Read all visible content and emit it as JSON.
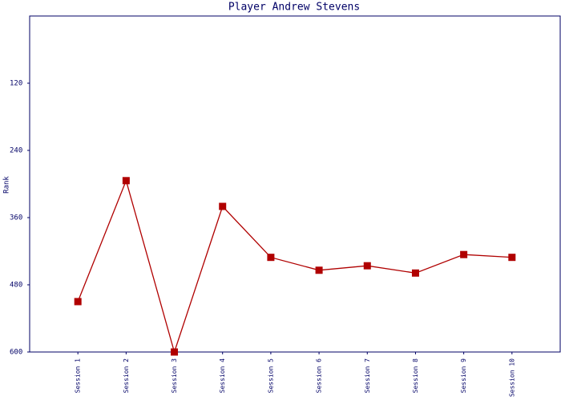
{
  "chart_data": {
    "type": "line",
    "title": "Player Andrew Stevens",
    "y_label": "Rank",
    "categories": [
      "Session 1",
      "Session 2",
      "Session 3",
      "Session 4",
      "Session 5",
      "Session 6",
      "Session 7",
      "Session 8",
      "Session 9",
      "Session 10"
    ],
    "values": [
      510,
      294,
      600,
      340,
      431,
      454,
      446,
      459,
      426,
      431
    ],
    "color": "#b00000",
    "ylim": [
      0,
      600
    ],
    "y_inverted": true,
    "yticks": [
      120,
      240,
      360,
      480,
      600
    ]
  }
}
